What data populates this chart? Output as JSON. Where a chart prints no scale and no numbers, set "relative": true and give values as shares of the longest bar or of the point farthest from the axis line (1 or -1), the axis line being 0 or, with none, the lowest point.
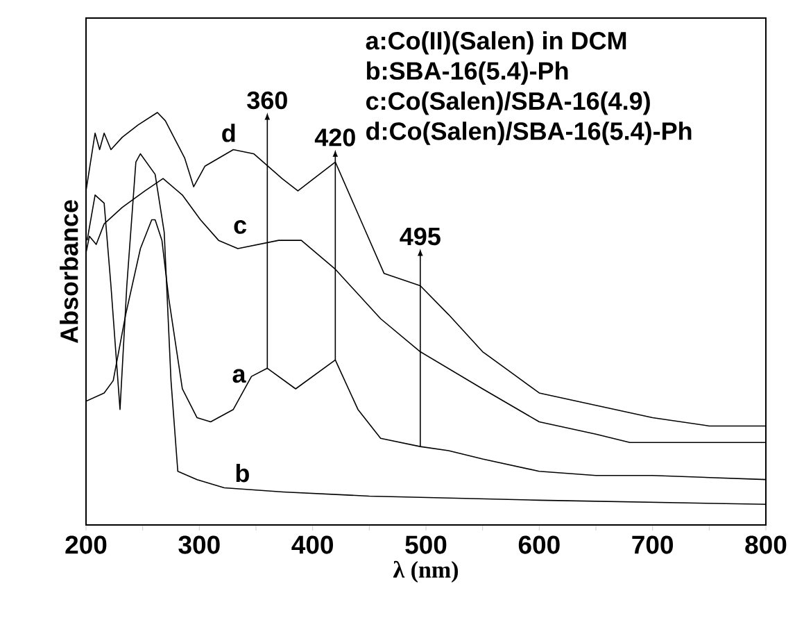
{
  "chart_data": {
    "type": "line",
    "relative": true,
    "xlabel": "λ (nm)",
    "ylabel": "Absorbance",
    "tick_labels": "x",
    "xlim": [
      200,
      800
    ],
    "xticks": [
      200,
      {
        "value": 250,
        "label": null
      },
      300,
      {
        "value": 350,
        "label": null
      },
      400,
      {
        "value": 450,
        "label": null
      },
      500,
      {
        "value": 550,
        "label": null
      },
      600,
      {
        "value": 650,
        "label": null
      },
      700,
      {
        "value": 750,
        "label": null
      },
      800
    ],
    "series": [
      {
        "name": "a",
        "color": "#000000",
        "x": [
          200,
          216,
          224,
          235,
          248,
          258,
          261,
          267,
          273,
          285,
          298,
          310,
          330,
          346,
          360,
          385,
          420,
          440,
          460,
          495,
          520,
          550,
          600,
          650,
          700,
          800
        ],
        "values": [
          0.3,
          0.32,
          0.35,
          0.51,
          0.67,
          0.74,
          0.74,
          0.69,
          0.55,
          0.33,
          0.26,
          0.25,
          0.28,
          0.36,
          0.38,
          0.33,
          0.4,
          0.28,
          0.21,
          0.19,
          0.18,
          0.16,
          0.13,
          0.12,
          0.12,
          0.11
        ]
      },
      {
        "name": "b",
        "color": "#000000",
        "x": [
          201,
          208,
          216,
          222,
          230,
          236,
          244,
          248,
          261,
          269,
          275,
          281,
          298,
          322,
          374,
          450,
          600,
          800
        ],
        "values": [
          0.69,
          0.8,
          0.78,
          0.58,
          0.28,
          0.58,
          0.88,
          0.9,
          0.85,
          0.71,
          0.35,
          0.13,
          0.11,
          0.09,
          0.08,
          0.07,
          0.06,
          0.05
        ]
      },
      {
        "name": "c",
        "color": "#000000",
        "x": [
          200,
          203,
          209,
          216,
          232,
          252,
          268,
          285,
          301,
          317,
          334,
          370,
          390,
          420,
          460,
          495,
          550,
          600,
          650,
          680,
          700,
          800
        ],
        "values": [
          0.66,
          0.7,
          0.68,
          0.73,
          0.77,
          0.81,
          0.84,
          0.8,
          0.74,
          0.69,
          0.67,
          0.69,
          0.69,
          0.62,
          0.5,
          0.42,
          0.33,
          0.25,
          0.22,
          0.2,
          0.2,
          0.2
        ]
      },
      {
        "name": "d",
        "color": "#000000",
        "x": [
          200,
          208,
          212,
          216,
          222,
          232,
          246,
          263,
          270,
          287,
          295,
          305,
          330,
          348,
          373,
          387,
          420,
          463,
          495,
          520,
          550,
          580,
          600,
          650,
          700,
          750,
          800
        ],
        "values": [
          0.81,
          0.95,
          0.91,
          0.95,
          0.91,
          0.94,
          0.97,
          1,
          0.98,
          0.89,
          0.82,
          0.87,
          0.91,
          0.9,
          0.84,
          0.81,
          0.88,
          0.61,
          0.58,
          0.51,
          0.42,
          0.36,
          0.32,
          0.29,
          0.26,
          0.24,
          0.24
        ]
      }
    ],
    "annotations": [
      "a:Co(II)(Salen) in DCM",
      "b:SBA-16(5.4)-Ph",
      "c:Co(Salen)/SBA-16(4.9)",
      "d:Co(Salen)/SBA-16(5.4)-Ph",
      {
        "text": "360",
        "x": 360,
        "y": 0.38
      },
      {
        "text": "420",
        "x": 420,
        "y": 0.4
      },
      {
        "text": "495",
        "x": 495,
        "y": 0.19
      }
    ]
  }
}
